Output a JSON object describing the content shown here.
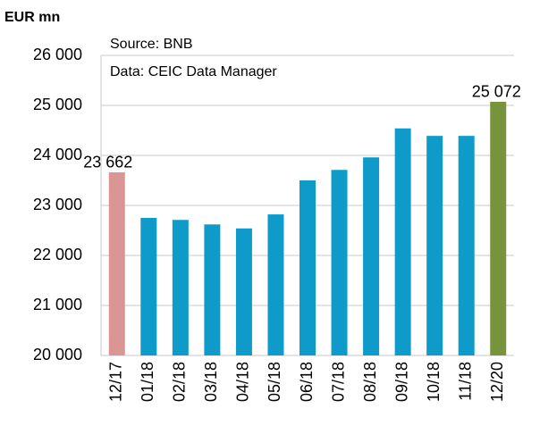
{
  "chart_data": {
    "type": "bar",
    "y_label": "EUR mn",
    "annotations": [
      "Source: BNB",
      "Data: CEIC Data Manager"
    ],
    "categories": [
      "12/17",
      "01/18",
      "02/18",
      "03/18",
      "04/18",
      "05/18",
      "06/18",
      "07/18",
      "08/18",
      "09/18",
      "10/18",
      "11/18",
      "12/20"
    ],
    "values": [
      23662,
      22750,
      22710,
      22620,
      22540,
      22820,
      23500,
      23710,
      23960,
      24540,
      24390,
      24390,
      25072
    ],
    "value_labels": [
      "23 662",
      null,
      null,
      null,
      null,
      null,
      null,
      null,
      null,
      null,
      null,
      null,
      "25 072"
    ],
    "colors": [
      "#d99694",
      "#0e9bc9",
      "#0e9bc9",
      "#0e9bc9",
      "#0e9bc9",
      "#0e9bc9",
      "#0e9bc9",
      "#0e9bc9",
      "#0e9bc9",
      "#0e9bc9",
      "#0e9bc9",
      "#0e9bc9",
      "#77933c"
    ],
    "ylim": [
      20000,
      26000
    ],
    "yticks": [
      {
        "value": 20000,
        "label": "20 000"
      },
      {
        "value": 21000,
        "label": "21 000"
      },
      {
        "value": 22000,
        "label": "22 000"
      },
      {
        "value": 23000,
        "label": "23 000"
      },
      {
        "value": 24000,
        "label": "24 000"
      },
      {
        "value": 25000,
        "label": "25 000"
      },
      {
        "value": 26000,
        "label": "26 000"
      }
    ],
    "grid": true
  }
}
